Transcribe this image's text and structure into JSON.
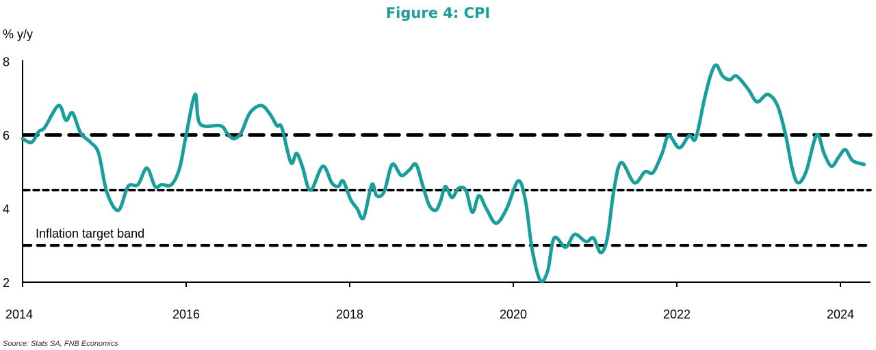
{
  "chart_data": {
    "type": "line",
    "title": "Figure 4: CPI",
    "ylabel": "% y/y",
    "xlabel": "",
    "ylim": [
      2,
      8
    ],
    "xlim": [
      2014,
      2024.4
    ],
    "yticks": [
      "2",
      "4",
      "6",
      "8"
    ],
    "xticks": [
      "2014",
      "2016",
      "2018",
      "2020",
      "2022",
      "2024"
    ],
    "grid": false,
    "annotation": "Inflation target band",
    "source": "Source: Stats SA, FNB Economics",
    "series_color": "#1a9e9c",
    "reference_lines": [
      {
        "name": "6% upper",
        "value": 6,
        "style": "long-dash"
      },
      {
        "name": "4.5% midpoint",
        "value": 4.5,
        "style": "short-dash"
      },
      {
        "name": "3% lower",
        "value": 3,
        "style": "dash"
      }
    ],
    "series": [
      {
        "name": "CPI",
        "x": [
          2014.0,
          2014.11,
          2014.2,
          2014.27,
          2014.44,
          2014.53,
          2014.61,
          2014.71,
          2014.83,
          2014.93,
          2015.03,
          2015.17,
          2015.29,
          2015.41,
          2015.52,
          2015.62,
          2015.7,
          2015.82,
          2015.92,
          2016.0,
          2016.11,
          2016.17,
          2016.42,
          2016.5,
          2016.58,
          2016.67,
          2016.78,
          2016.92,
          2017.03,
          2017.11,
          2017.17,
          2017.28,
          2017.35,
          2017.42,
          2017.52,
          2017.67,
          2017.78,
          2017.86,
          2017.92,
          2018.01,
          2018.09,
          2018.17,
          2018.27,
          2018.33,
          2018.42,
          2018.52,
          2018.63,
          2018.73,
          2018.81,
          2018.89,
          2018.97,
          2019.05,
          2019.11,
          2019.17,
          2019.25,
          2019.33,
          2019.42,
          2019.5,
          2019.58,
          2019.67,
          2019.79,
          2019.92,
          2020.06,
          2020.15,
          2020.23,
          2020.33,
          2020.42,
          2020.5,
          2020.64,
          2020.75,
          2020.89,
          2020.98,
          2021.07,
          2021.15,
          2021.23,
          2021.32,
          2021.48,
          2021.61,
          2021.71,
          2021.82,
          2021.9,
          2022.03,
          2022.15,
          2022.23,
          2022.33,
          2022.41,
          2022.48,
          2022.56,
          2022.65,
          2022.73,
          2022.87,
          2022.98,
          2023.11,
          2023.23,
          2023.33,
          2023.41,
          2023.48,
          2023.58,
          2023.71,
          2023.8,
          2023.89,
          2023.98,
          2024.06,
          2024.15,
          2024.29
        ],
        "y": [
          5.9,
          5.8,
          6.1,
          6.2,
          6.8,
          6.4,
          6.6,
          6.05,
          5.8,
          5.5,
          4.45,
          3.95,
          4.6,
          4.65,
          5.1,
          4.6,
          4.65,
          4.65,
          5.1,
          6.0,
          7.1,
          6.3,
          6.25,
          6.05,
          5.9,
          6.05,
          6.6,
          6.8,
          6.55,
          6.25,
          6.2,
          5.25,
          5.5,
          5.15,
          4.5,
          5.15,
          4.7,
          4.6,
          4.75,
          4.25,
          4.0,
          3.75,
          4.65,
          4.35,
          4.45,
          5.2,
          4.9,
          5.05,
          5.2,
          4.65,
          4.1,
          3.95,
          4.2,
          4.6,
          4.3,
          4.55,
          4.5,
          3.9,
          4.35,
          4.0,
          3.6,
          4.0,
          4.75,
          4.2,
          2.9,
          2.05,
          2.3,
          3.2,
          2.95,
          3.3,
          3.1,
          3.2,
          2.8,
          3.2,
          4.5,
          5.25,
          4.7,
          5.0,
          4.98,
          5.5,
          5.98,
          5.65,
          5.98,
          5.9,
          6.9,
          7.6,
          7.9,
          7.6,
          7.5,
          7.6,
          7.25,
          6.9,
          7.1,
          6.8,
          6.0,
          5.1,
          4.7,
          5.0,
          6.0,
          5.5,
          5.15,
          5.4,
          5.6,
          5.3,
          5.2
        ]
      }
    ]
  }
}
